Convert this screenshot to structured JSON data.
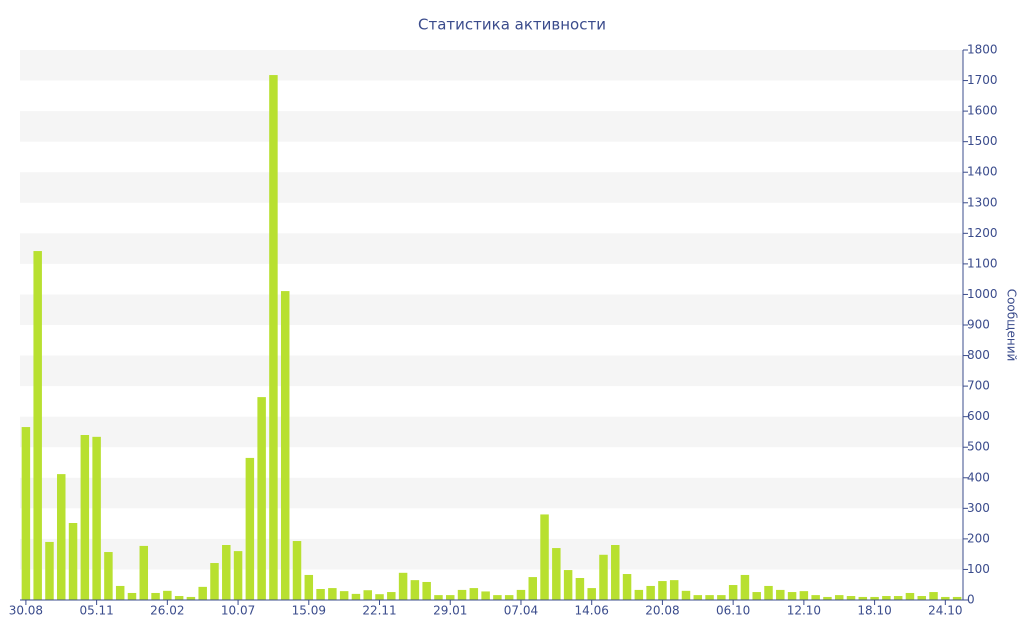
{
  "chart_data": {
    "type": "bar",
    "title": "Статистика активности",
    "y_label": "Сообщений",
    "categories": [
      "30.08",
      null,
      null,
      null,
      null,
      null,
      "05.11",
      null,
      null,
      null,
      null,
      null,
      "26.02",
      null,
      null,
      null,
      null,
      null,
      "10.07",
      null,
      null,
      null,
      null,
      null,
      "15.09",
      null,
      null,
      null,
      null,
      null,
      "22.11",
      null,
      null,
      null,
      null,
      null,
      "29.01",
      null,
      null,
      null,
      null,
      null,
      "07.04",
      null,
      null,
      null,
      null,
      null,
      "14.06",
      null,
      null,
      null,
      null,
      null,
      "20.08",
      null,
      null,
      null,
      null,
      null,
      "06.10",
      null,
      null,
      null,
      null,
      null,
      "12.10",
      null,
      null,
      null,
      null,
      null,
      "18.10",
      null,
      null,
      null,
      null,
      null,
      "24.10",
      null
    ],
    "values": [
      566,
      1142,
      190,
      412,
      252,
      540,
      534,
      157,
      46,
      23,
      177,
      23,
      30,
      13,
      10,
      43,
      121,
      180,
      160,
      465,
      664,
      1718,
      1011,
      193,
      82,
      36,
      39,
      29,
      20,
      32,
      19,
      26,
      89,
      65,
      59,
      16,
      16,
      33,
      39,
      28,
      16,
      16,
      33,
      75,
      280,
      170,
      98,
      72,
      39,
      148,
      180,
      85,
      33,
      46,
      62,
      65,
      30,
      16,
      16,
      16,
      49,
      82,
      26,
      46,
      33,
      26,
      29,
      16,
      10,
      16,
      13,
      10,
      10,
      13,
      13,
      23,
      13,
      26,
      10,
      10
    ],
    "color": "#b8e030",
    "ylim": [
      0,
      1800
    ],
    "yticks": [
      0,
      100,
      200,
      300,
      400,
      500,
      600,
      700,
      800,
      900,
      1000,
      1100,
      1200,
      1300,
      1400,
      1500,
      1600,
      1700,
      1800
    ],
    "grid": true
  }
}
